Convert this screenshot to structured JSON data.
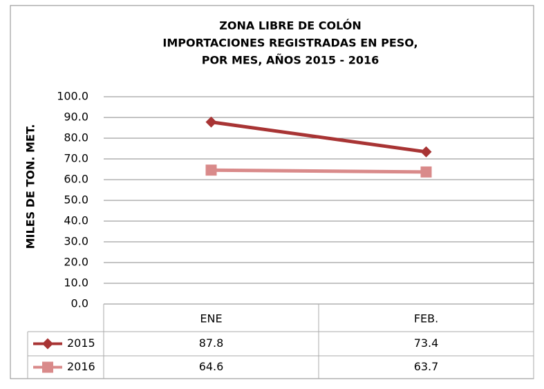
{
  "chart_data": {
    "type": "line",
    "title": [
      "ZONA LIBRE DE COLÓN",
      "IMPORTACIONES REGISTRADAS EN PESO,",
      "POR MES, AÑOS 2015 - 2016"
    ],
    "y_label": "MILES DE TON. MET.",
    "categories": [
      "ENE",
      "FEB."
    ],
    "series": [
      {
        "name": "2015",
        "color": "#a83434",
        "marker": "diamond",
        "values": [
          87.8,
          73.4
        ]
      },
      {
        "name": "2016",
        "color": "#d98a8a",
        "marker": "square",
        "values": [
          64.6,
          63.7
        ]
      }
    ],
    "ylim": [
      0,
      100
    ],
    "yticks": [
      {
        "value": 0,
        "label": "0.0"
      },
      {
        "value": 10,
        "label": "10.0"
      },
      {
        "value": 20,
        "label": "20.0"
      },
      {
        "value": 30,
        "label": "30.0"
      },
      {
        "value": 40,
        "label": "40.0"
      },
      {
        "value": 50,
        "label": "50.0"
      },
      {
        "value": 60,
        "label": "60.0"
      },
      {
        "value": 70,
        "label": "70.0"
      },
      {
        "value": 80,
        "label": "80.0"
      },
      {
        "value": 90,
        "label": "90.0"
      },
      {
        "value": 100,
        "label": "100.0"
      }
    ],
    "grid": true
  }
}
